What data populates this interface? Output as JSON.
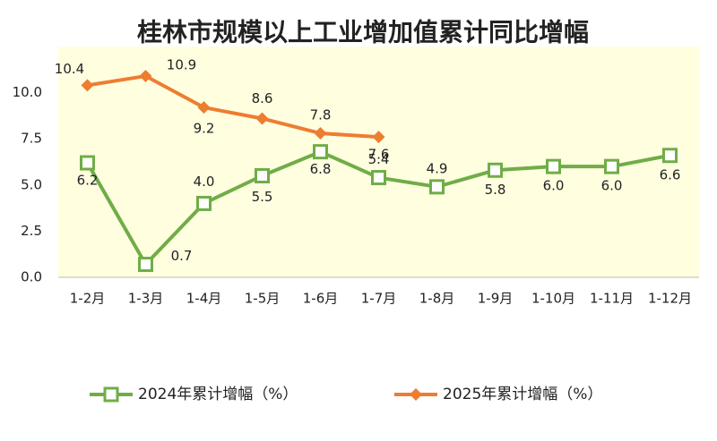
{
  "chart_data": {
    "type": "line",
    "title": "桂林市规模以上工业增加值累计同比增幅",
    "categories": [
      "1-2月",
      "1-3月",
      "1-4月",
      "1-5月",
      "1-6月",
      "1-7月",
      "1-8月",
      "1-9月",
      "1-10月",
      "1-11月",
      "1-12月"
    ],
    "series": [
      {
        "name": "2024年累计增幅（%）",
        "color": "#70ad47",
        "marker": "square",
        "values": [
          6.2,
          0.7,
          4.0,
          5.5,
          6.8,
          5.4,
          4.9,
          5.8,
          6.0,
          6.0,
          6.6
        ],
        "value_labels": [
          "6.2",
          "0.7",
          "4.0",
          "5.5",
          "6.8",
          "5.4",
          "4.9",
          "5.8",
          "6.0",
          "6.0",
          "6.6"
        ]
      },
      {
        "name": "2025年累计增幅（%）",
        "color": "#ed7d31",
        "marker": "diamond",
        "values": [
          10.4,
          10.9,
          9.2,
          8.6,
          7.8,
          7.6,
          null,
          null,
          null,
          null,
          null
        ],
        "value_labels": [
          "10.4",
          "10.9",
          "9.2",
          "8.6",
          "7.8",
          "7.6",
          null,
          null,
          null,
          null,
          null
        ]
      }
    ],
    "ylim": [
      0,
      12.5
    ],
    "yticks": [
      {
        "value": 0,
        "label": "0.0"
      },
      {
        "value": 2.5,
        "label": "2.5"
      },
      {
        "value": 5,
        "label": "5.0"
      },
      {
        "value": 7.5,
        "label": "7.5"
      },
      {
        "value": 10,
        "label": "10.0"
      }
    ],
    "legend": "bottom",
    "plot_background": "#ffffe0"
  }
}
